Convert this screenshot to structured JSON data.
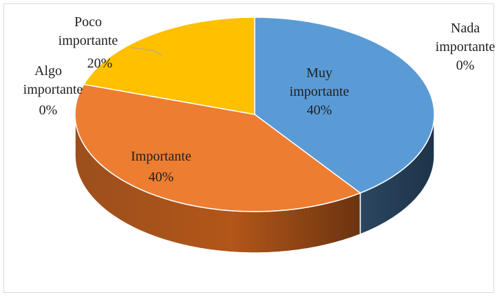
{
  "chart_data": {
    "type": "pie",
    "style": "3d",
    "categories": [
      "Muy importante",
      "Importante",
      "Algo importante",
      "Poco importante",
      "Nada importante"
    ],
    "values": [
      40,
      40,
      0,
      20,
      0
    ],
    "unit": "%",
    "colors": [
      "#5B9BD5",
      "#ED7D31",
      "#A5A5A5",
      "#FFC000",
      "#4472C4"
    ],
    "data_labels": [
      {
        "lines": [
          "Muy",
          "importante"
        ],
        "value": "40%"
      },
      {
        "lines": [
          "Importante"
        ],
        "value": "40%"
      },
      {
        "lines": [
          "Algo",
          "importante"
        ],
        "value": "0%"
      },
      {
        "lines": [
          "Poco",
          "importante"
        ],
        "value": "20%"
      },
      {
        "lines": [
          "Nada",
          "importante"
        ],
        "value": "0%"
      }
    ],
    "legend": "none"
  }
}
